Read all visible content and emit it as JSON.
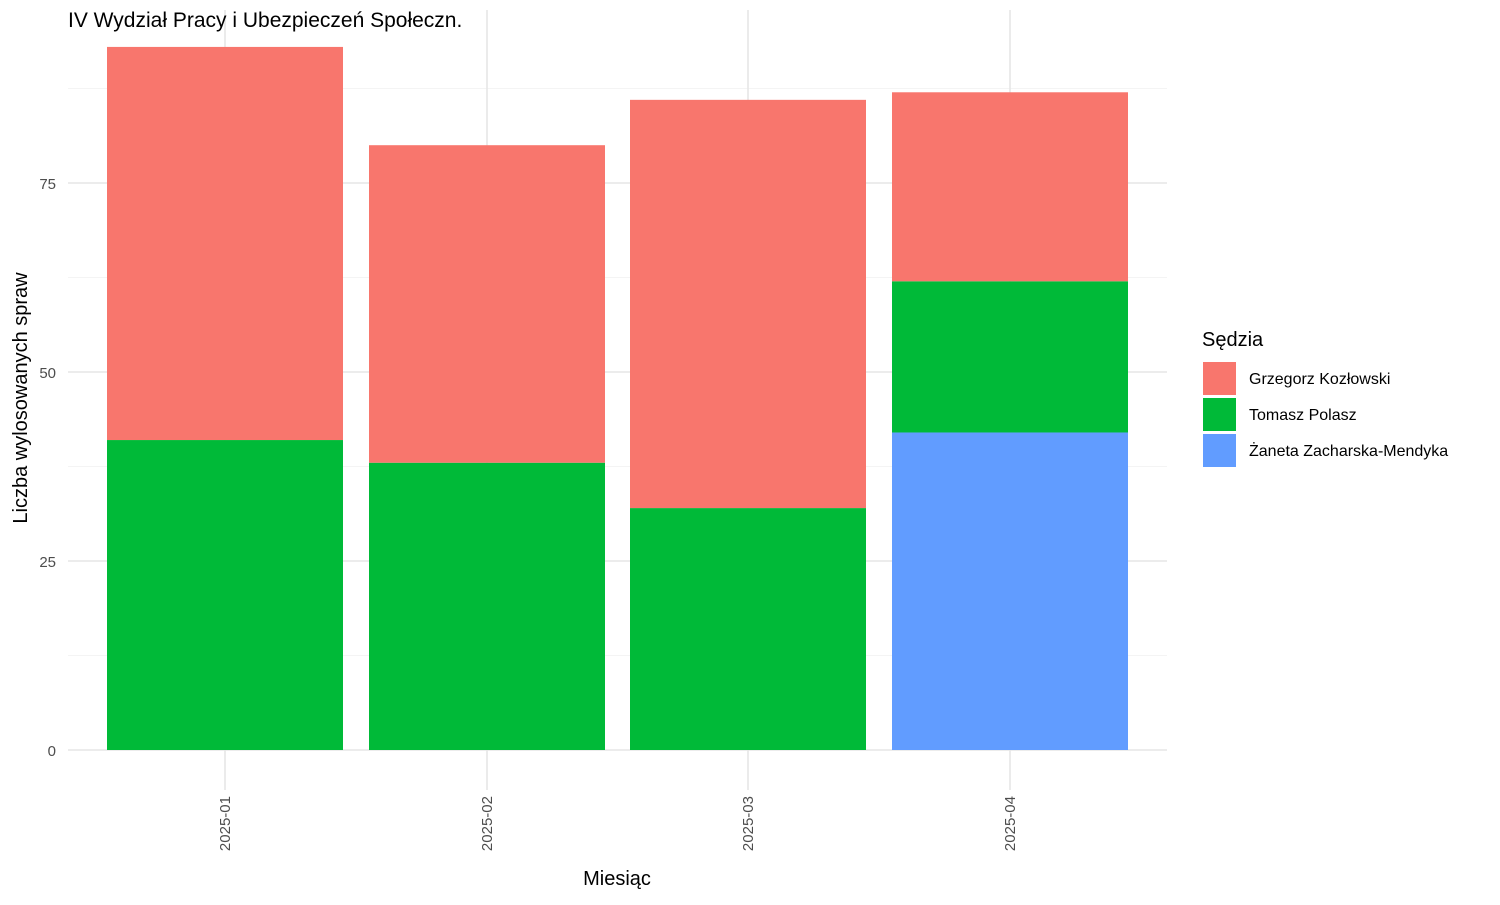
{
  "chart_data": {
    "type": "bar",
    "stacked": true,
    "title": "IV Wydział Pracy i Ubezpieczeń Społeczn.",
    "xlabel": "Miesiąc",
    "ylabel": "Liczba wylosowanych spraw",
    "categories": [
      "2025-01",
      "2025-02",
      "2025-03",
      "2025-04"
    ],
    "ylim": [
      0,
      96
    ],
    "yticks": [
      0,
      25,
      50,
      75
    ],
    "grid": true,
    "legend": {
      "title": "Sędzia",
      "position": "right"
    },
    "series": [
      {
        "name": "Żaneta Zacharska-Mendyka",
        "color": "#619CFF",
        "values": [
          0,
          0,
          0,
          42
        ]
      },
      {
        "name": "Tomasz Polasz",
        "color": "#00BA38",
        "values": [
          41,
          38,
          32,
          20
        ]
      },
      {
        "name": "Grzegorz Kozłowski",
        "color": "#F8766D",
        "values": [
          52,
          42,
          54,
          25
        ]
      }
    ],
    "legend_order": [
      "Grzegorz Kozłowski",
      "Tomasz Polasz",
      "Żaneta Zacharska-Mendyka"
    ]
  }
}
